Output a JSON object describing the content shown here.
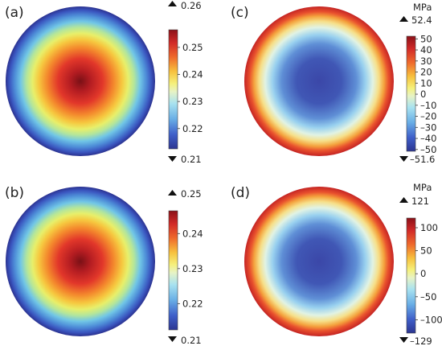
{
  "panels": [
    {
      "label": "(a)",
      "field": "hot-center",
      "unit": "",
      "max_label": "0.26",
      "min_label": "0.21",
      "ticks": [
        "0.25",
        "0.24",
        "0.23",
        "0.22"
      ],
      "tick_values": [
        0.25,
        0.24,
        0.23,
        0.22
      ],
      "bar_range": [
        0.2125,
        0.2565
      ]
    },
    {
      "label": "(b)",
      "field": "hot-center",
      "unit": "",
      "max_label": "0.25",
      "min_label": "0.21",
      "ticks": [
        "0.24",
        "0.23",
        "0.22"
      ],
      "tick_values": [
        0.24,
        0.23,
        0.22
      ],
      "bar_range": [
        0.2125,
        0.2465
      ]
    },
    {
      "label": "(c)",
      "field": "cold-center",
      "unit": "MPa",
      "max_label": "52.4",
      "min_label": "–51.6",
      "ticks": [
        "50",
        "40",
        "30",
        "20",
        "10",
        "0",
        "–10",
        "–20",
        "–30",
        "–40",
        "–50"
      ],
      "tick_values": [
        50,
        40,
        30,
        20,
        10,
        0,
        -10,
        -20,
        -30,
        -40,
        -50
      ],
      "bar_range": [
        -51.6,
        52.4
      ]
    },
    {
      "label": "(d)",
      "field": "cold-center",
      "unit": "MPa",
      "max_label": "121",
      "min_label": "–129",
      "ticks": [
        "100",
        "50",
        "0",
        "–50",
        "–100"
      ],
      "tick_values": [
        100,
        50,
        0,
        -50,
        -100
      ],
      "bar_range": [
        -129,
        121
      ]
    }
  ]
}
